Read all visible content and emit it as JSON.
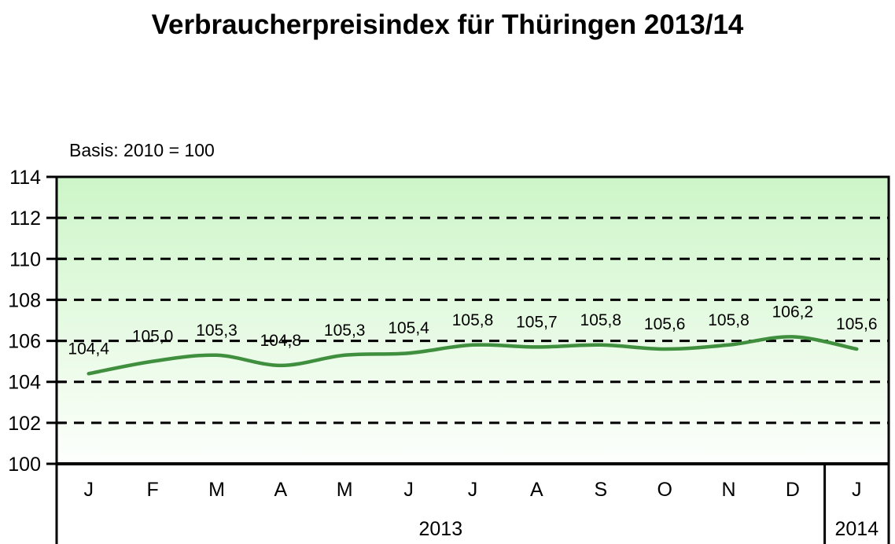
{
  "title": "Verbraucherpreisindex für Thüringen 2013/14",
  "basis_label": "Basis: 2010 = 100",
  "chart_data": {
    "type": "line",
    "title": "Verbraucherpreisindex für Thüringen 2013/14",
    "subtitle": "Basis: 2010 = 100",
    "xlabel": "",
    "ylabel": "",
    "categories": [
      "J",
      "F",
      "M",
      "A",
      "M",
      "J",
      "J",
      "A",
      "S",
      "O",
      "N",
      "D",
      "J"
    ],
    "values": [
      104.4,
      105.0,
      105.3,
      104.8,
      105.3,
      105.4,
      105.8,
      105.7,
      105.8,
      105.6,
      105.8,
      106.2,
      105.6
    ],
    "value_labels": [
      "104,4",
      "105,0",
      "105,3",
      "104,8",
      "105,3",
      "105,4",
      "105,8",
      "105,7",
      "105,8",
      "105,6",
      "105,8",
      "106,2",
      "105,6"
    ],
    "year_groups": [
      {
        "label": "2013",
        "months": 12
      },
      {
        "label": "2014",
        "months": 1
      }
    ],
    "ylim": [
      100,
      114
    ],
    "yticks": [
      100,
      102,
      104,
      106,
      108,
      110,
      112,
      114
    ],
    "grid": "horizontal-dashed",
    "legend": "none",
    "line_color": "#3f8f3f",
    "grid_color": "#000000",
    "axis_color": "#000000",
    "plot_bg_top": "#cdf5c8",
    "plot_bg_bottom": "#fdfffc"
  }
}
